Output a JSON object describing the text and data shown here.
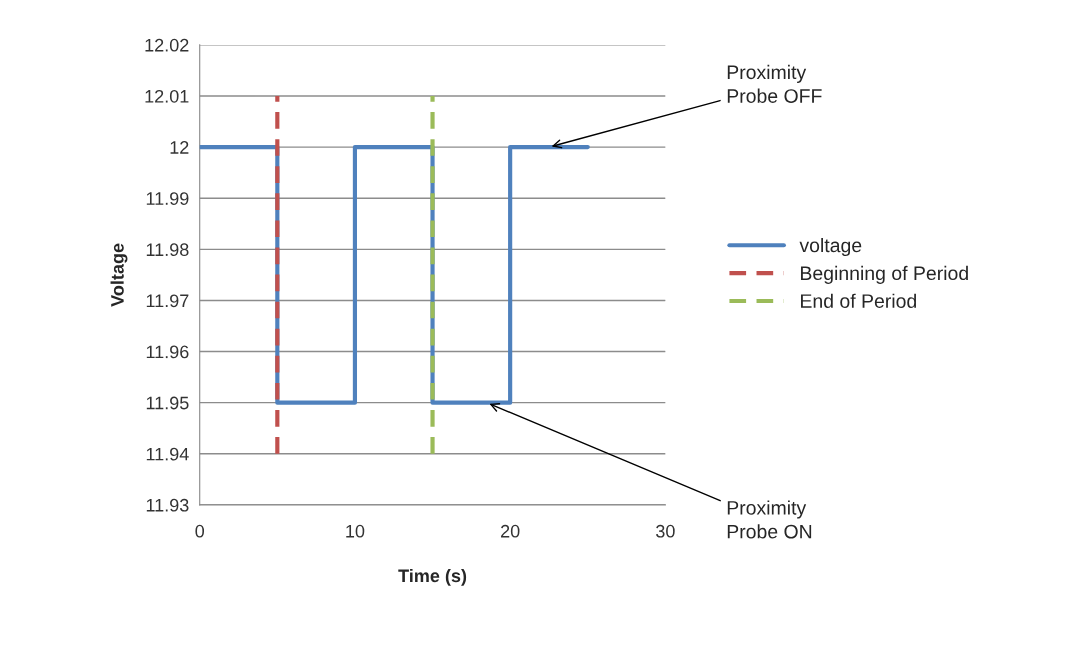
{
  "chart_data": {
    "type": "line",
    "xlabel": "Time (s)",
    "ylabel": "Voltage",
    "xlim": [
      0,
      30
    ],
    "xticks": [
      0,
      10,
      20,
      30
    ],
    "ylim": [
      11.93,
      12.02
    ],
    "yticks": [
      11.93,
      11.94,
      11.95,
      11.96,
      11.97,
      11.98,
      11.99,
      12,
      12.01,
      12.02
    ],
    "grid": "y",
    "legend": "right",
    "line_style": "solid",
    "marker": "none",
    "series": [
      {
        "name": "voltage",
        "color": "#4f81bd",
        "x": [
          0,
          5,
          5,
          10,
          10,
          15,
          15,
          20,
          20,
          25
        ],
        "values": [
          12,
          12,
          11.95,
          11.95,
          12,
          12,
          11.95,
          11.95,
          12,
          12
        ]
      },
      {
        "name": "Beginning of Period",
        "color": "#c0504d",
        "line_style": "dashed",
        "x": [
          5,
          5
        ],
        "values": [
          11.94,
          12.01
        ]
      },
      {
        "name": "End of Period",
        "color": "#9bbb59",
        "line_style": "dashed",
        "x": [
          15,
          15
        ],
        "values": [
          11.94,
          12.01
        ]
      }
    ],
    "annotations": [
      {
        "text": "Proximity\nProbe OFF",
        "x": 22.5,
        "y": 12
      },
      {
        "text": "Proximity\nProbe ON",
        "x": 18.5,
        "y": 11.95
      }
    ]
  }
}
